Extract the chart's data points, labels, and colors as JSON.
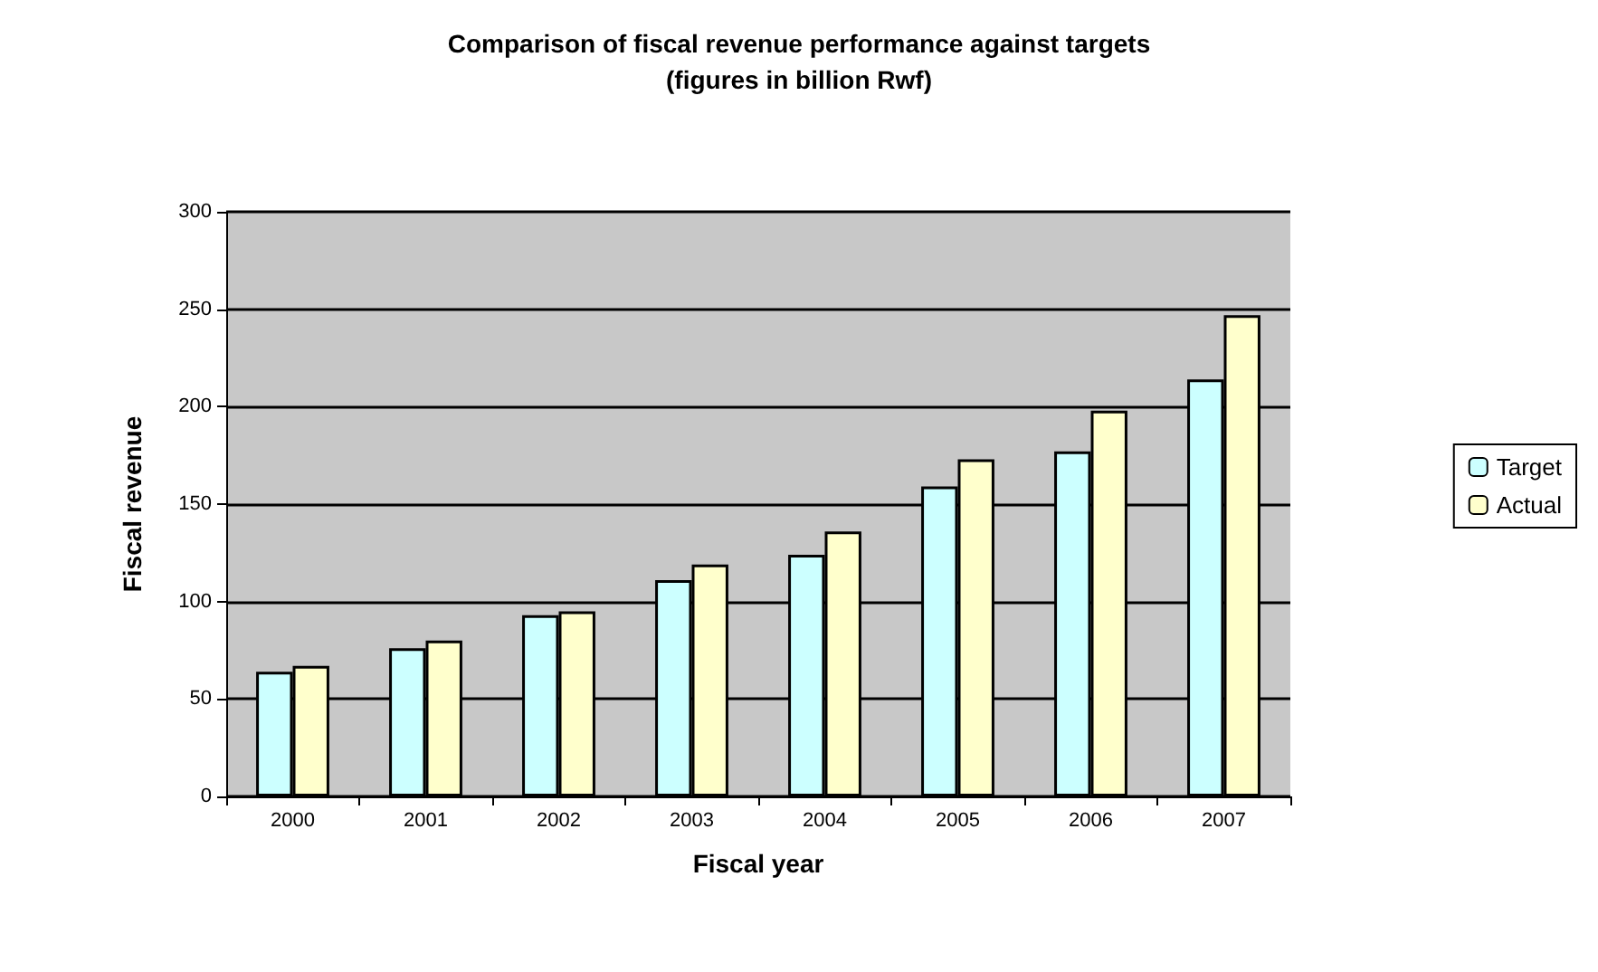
{
  "chart_data": {
    "type": "bar",
    "title": "Comparison of fiscal revenue performance against targets",
    "subtitle": "(figures in billion Rwf)",
    "xlabel": "Fiscal year",
    "ylabel": "Fiscal revenue",
    "categories": [
      "2000",
      "2001",
      "2002",
      "2003",
      "2004",
      "2005",
      "2006",
      "2007"
    ],
    "series": [
      {
        "name": "Target",
        "color": "#ccffff",
        "values": [
          64,
          76,
          93,
          111,
          124,
          159,
          177,
          214
        ]
      },
      {
        "name": "Actual",
        "color": "#ffffcc",
        "values": [
          67,
          80,
          95,
          119,
          136,
          173,
          198,
          247
        ]
      }
    ],
    "ylim": [
      0,
      300
    ],
    "yticks": [
      0,
      50,
      100,
      150,
      200,
      250,
      300
    ],
    "grid": "y",
    "legend": "right"
  }
}
